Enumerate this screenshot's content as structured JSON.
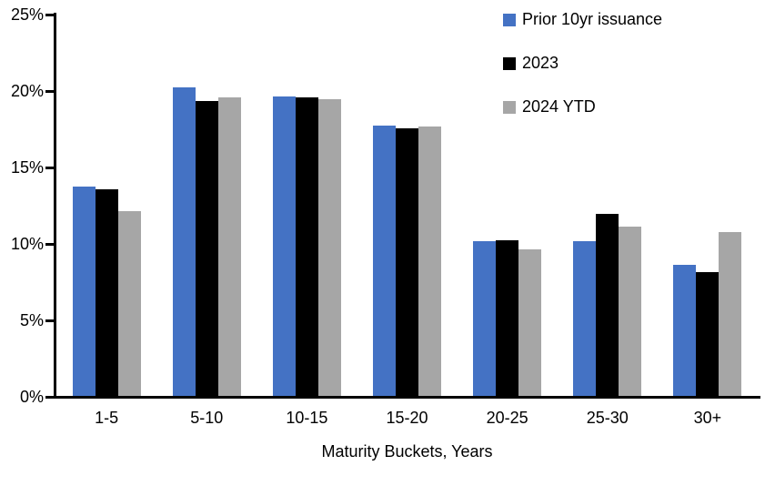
{
  "chart_data": {
    "type": "bar",
    "title": "",
    "categories": [
      "1-5",
      "5-10",
      "10-15",
      "15-20",
      "20-25",
      "25-30",
      "30+"
    ],
    "series": [
      {
        "name": "Prior 10yr issuance",
        "color": "#4472C4",
        "values": [
          13.7,
          20.2,
          19.6,
          17.7,
          10.1,
          10.1,
          8.6
        ]
      },
      {
        "name": "2023",
        "color": "#000000",
        "values": [
          13.5,
          19.3,
          19.5,
          17.5,
          10.2,
          11.9,
          8.1
        ]
      },
      {
        "name": "2024 YTD",
        "color": "#A6A6A6",
        "values": [
          12.1,
          19.5,
          19.4,
          17.6,
          9.6,
          11.1,
          10.7
        ]
      }
    ],
    "xlabel": "Maturity Buckets, Years",
    "ylabel": "",
    "ylim": [
      0,
      25
    ],
    "ytick_step": 5,
    "ytick_labels": [
      "0%",
      "5%",
      "10%",
      "15%",
      "20%",
      "25%"
    ],
    "grid": false,
    "legend_position": "top-right"
  }
}
